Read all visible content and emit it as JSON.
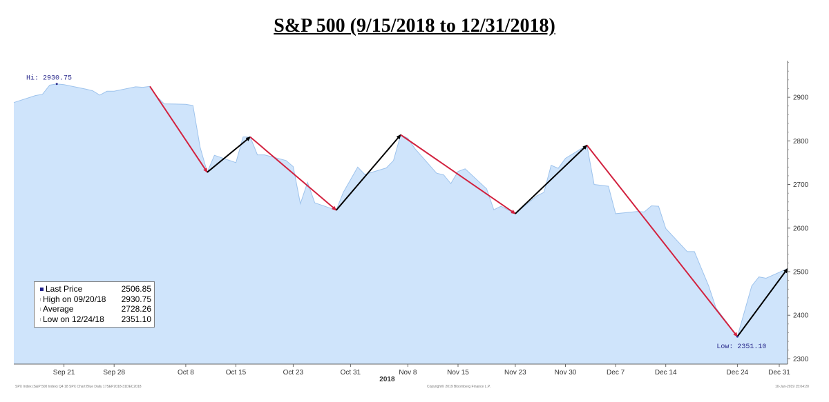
{
  "title": "S&P 500 (9/15/2018 to 12/31/2018)",
  "chart_data": {
    "type": "area",
    "title": "S&P 500 (9/15/2018 to 12/31/2018)",
    "x_ticks": [
      "Sep 21",
      "Sep 28",
      "Oct 8",
      "Oct 15",
      "Oct 23",
      "Oct 31",
      "Nov 8",
      "Nov 15",
      "Nov 23",
      "Nov 30",
      "Dec 7",
      "Dec 14",
      "Dec 24",
      "Dec 31"
    ],
    "x_year_label": "2018",
    "y_ticks": [
      2300,
      2400,
      2500,
      2600,
      2700,
      2800,
      2900
    ],
    "ylim": [
      2288,
      2984
    ],
    "grid": false,
    "series": [
      {
        "x": [
          "2018-09-14",
          "2018-09-17",
          "2018-09-18",
          "2018-09-19",
          "2018-09-20",
          "2018-09-21",
          "2018-09-24",
          "2018-09-25",
          "2018-09-26",
          "2018-09-27",
          "2018-09-28",
          "2018-10-01",
          "2018-10-02",
          "2018-10-03",
          "2018-10-04",
          "2018-10-05",
          "2018-10-08",
          "2018-10-09",
          "2018-10-10",
          "2018-10-11",
          "2018-10-12",
          "2018-10-15",
          "2018-10-16",
          "2018-10-17",
          "2018-10-18",
          "2018-10-19",
          "2018-10-22",
          "2018-10-23",
          "2018-10-24",
          "2018-10-25",
          "2018-10-26",
          "2018-10-29",
          "2018-10-30",
          "2018-10-31",
          "2018-11-01",
          "2018-11-02",
          "2018-11-05",
          "2018-11-06",
          "2018-11-07",
          "2018-11-08",
          "2018-11-09",
          "2018-11-12",
          "2018-11-13",
          "2018-11-14",
          "2018-11-15",
          "2018-11-16",
          "2018-11-19",
          "2018-11-20",
          "2018-11-21",
          "2018-11-23",
          "2018-11-26",
          "2018-11-27",
          "2018-11-28",
          "2018-11-29",
          "2018-11-30",
          "2018-12-03",
          "2018-12-04",
          "2018-12-06",
          "2018-12-07",
          "2018-12-10",
          "2018-12-11",
          "2018-12-12",
          "2018-12-13",
          "2018-12-14",
          "2018-12-17",
          "2018-12-18",
          "2018-12-19",
          "2018-12-20",
          "2018-12-21",
          "2018-12-24",
          "2018-12-26",
          "2018-12-27",
          "2018-12-28",
          "2018-12-31"
        ],
        "y": [
          2888,
          2904,
          2907,
          2928,
          2930.75,
          2929,
          2919,
          2915,
          2905,
          2914,
          2914,
          2924,
          2923,
          2925,
          2901,
          2885,
          2884,
          2881,
          2786,
          2728,
          2767,
          2750,
          2809,
          2809,
          2768,
          2768,
          2755,
          2741,
          2656,
          2705,
          2658,
          2641,
          2682,
          2711,
          2740,
          2723,
          2738,
          2755,
          2814,
          2806,
          2782,
          2726,
          2722,
          2702,
          2730,
          2736,
          2690,
          2642,
          2650,
          2633,
          2674,
          2682,
          2744,
          2737,
          2760,
          2790,
          2700,
          2696,
          2633,
          2638,
          2637,
          2651,
          2650,
          2599,
          2546,
          2546,
          2506,
          2467,
          2417,
          2351.1,
          2467,
          2488,
          2485,
          2506.85
        ]
      }
    ],
    "trend_lines": [
      {
        "color": "#d2223f",
        "from": [
          "2018-10-03",
          2925
        ],
        "to": [
          "2018-10-11",
          2728
        ]
      },
      {
        "color": "#000000",
        "from": [
          "2018-10-11",
          2728
        ],
        "to": [
          "2018-10-17",
          2809
        ]
      },
      {
        "color": "#d2223f",
        "from": [
          "2018-10-17",
          2809
        ],
        "to": [
          "2018-10-29",
          2641
        ]
      },
      {
        "color": "#000000",
        "from": [
          "2018-10-29",
          2641
        ],
        "to": [
          "2018-11-07",
          2814
        ]
      },
      {
        "color": "#d2223f",
        "from": [
          "2018-11-07",
          2814
        ],
        "to": [
          "2018-11-23",
          2633
        ]
      },
      {
        "color": "#000000",
        "from": [
          "2018-11-23",
          2633
        ],
        "to": [
          "2018-12-03",
          2790
        ]
      },
      {
        "color": "#d2223f",
        "from": [
          "2018-12-03",
          2790
        ],
        "to": [
          "2018-12-24",
          2351.1
        ]
      },
      {
        "color": "#000000",
        "from": [
          "2018-12-24",
          2351.1
        ],
        "to": [
          "2018-12-31",
          2506.85
        ]
      }
    ],
    "annotations": {
      "high": {
        "label": "Hi: 2930.75",
        "date": "2018-09-20",
        "value": 2930.75
      },
      "low": {
        "label": "Low: 2351.10",
        "date": "2018-12-24",
        "value": 2351.1
      }
    },
    "legend": {
      "placement": "bottom-left",
      "rows": [
        {
          "label": "Last Price",
          "value": "2506.85",
          "marker": "#1f1f8a"
        },
        {
          "label": "High on 09/20/18",
          "value": "2930.75",
          "marker": "#bbbbbb"
        },
        {
          "label": "Average",
          "value": "2728.26",
          "marker": "#bbbbbb"
        },
        {
          "label": "Low on 12/24/18",
          "value": "2351.10",
          "marker": "#bbbbbb"
        }
      ]
    },
    "colors": {
      "fill": "#cfe4fb",
      "line": "#9ec3ec",
      "down_arrow": "#d2223f",
      "up_arrow": "#000000"
    }
  },
  "footer": {
    "left": "SPX Index (S&P 500 Index) Q4 18 SPX Chart Blue Daily 17SEP2018-31DEC2018",
    "center": "Copyright© 2019 Bloomberg Finance L.P.",
    "right": "10-Jan-2019 15:04:20"
  }
}
